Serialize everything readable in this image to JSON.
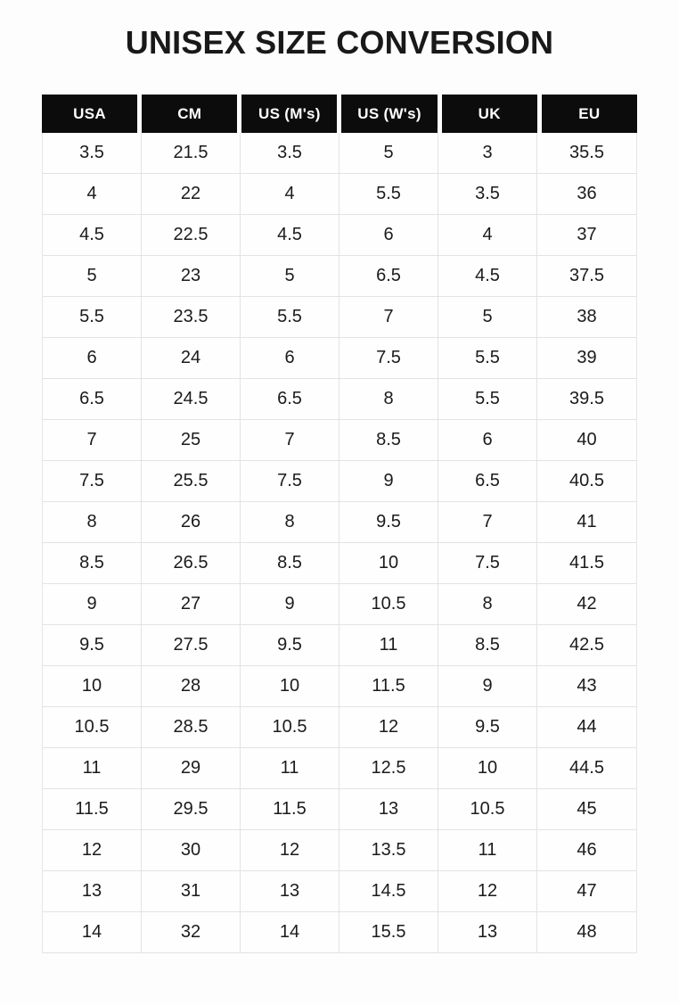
{
  "page": {
    "title": "UNISEX SIZE CONVERSION"
  },
  "table": {
    "columns": [
      "USA",
      "CM",
      "US (M's)",
      "US (W's)",
      "UK",
      "EU"
    ],
    "rows": [
      [
        "3.5",
        "21.5",
        "3.5",
        "5",
        "3",
        "35.5"
      ],
      [
        "4",
        "22",
        "4",
        "5.5",
        "3.5",
        "36"
      ],
      [
        "4.5",
        "22.5",
        "4.5",
        "6",
        "4",
        "37"
      ],
      [
        "5",
        "23",
        "5",
        "6.5",
        "4.5",
        "37.5"
      ],
      [
        "5.5",
        "23.5",
        "5.5",
        "7",
        "5",
        "38"
      ],
      [
        "6",
        "24",
        "6",
        "7.5",
        "5.5",
        "39"
      ],
      [
        "6.5",
        "24.5",
        "6.5",
        "8",
        "5.5",
        "39.5"
      ],
      [
        "7",
        "25",
        "7",
        "8.5",
        "6",
        "40"
      ],
      [
        "7.5",
        "25.5",
        "7.5",
        "9",
        "6.5",
        "40.5"
      ],
      [
        "8",
        "26",
        "8",
        "9.5",
        "7",
        "41"
      ],
      [
        "8.5",
        "26.5",
        "8.5",
        "10",
        "7.5",
        "41.5"
      ],
      [
        "9",
        "27",
        "9",
        "10.5",
        "8",
        "42"
      ],
      [
        "9.5",
        "27.5",
        "9.5",
        "11",
        "8.5",
        "42.5"
      ],
      [
        "10",
        "28",
        "10",
        "11.5",
        "9",
        "43"
      ],
      [
        "10.5",
        "28.5",
        "10.5",
        "12",
        "9.5",
        "44"
      ],
      [
        "11",
        "29",
        "11",
        "12.5",
        "10",
        "44.5"
      ],
      [
        "11.5",
        "29.5",
        "11.5",
        "13",
        "10.5",
        "45"
      ],
      [
        "12",
        "30",
        "12",
        "13.5",
        "11",
        "46"
      ],
      [
        "13",
        "31",
        "13",
        "14.5",
        "12",
        "47"
      ],
      [
        "14",
        "32",
        "14",
        "15.5",
        "13",
        "48"
      ]
    ]
  },
  "chart_data": {
    "type": "table",
    "title": "UNISEX SIZE CONVERSION",
    "columns": [
      "USA",
      "CM",
      "US (M's)",
      "US (W's)",
      "UK",
      "EU"
    ],
    "rows": [
      [
        "3.5",
        "21.5",
        "3.5",
        "5",
        "3",
        "35.5"
      ],
      [
        "4",
        "22",
        "4",
        "5.5",
        "3.5",
        "36"
      ],
      [
        "4.5",
        "22.5",
        "4.5",
        "6",
        "4",
        "37"
      ],
      [
        "5",
        "23",
        "5",
        "6.5",
        "4.5",
        "37.5"
      ],
      [
        "5.5",
        "23.5",
        "5.5",
        "7",
        "5",
        "38"
      ],
      [
        "6",
        "24",
        "6",
        "7.5",
        "5.5",
        "39"
      ],
      [
        "6.5",
        "24.5",
        "6.5",
        "8",
        "5.5",
        "39.5"
      ],
      [
        "7",
        "25",
        "7",
        "8.5",
        "6",
        "40"
      ],
      [
        "7.5",
        "25.5",
        "7.5",
        "9",
        "6.5",
        "40.5"
      ],
      [
        "8",
        "26",
        "8",
        "9.5",
        "7",
        "41"
      ],
      [
        "8.5",
        "26.5",
        "8.5",
        "10",
        "7.5",
        "41.5"
      ],
      [
        "9",
        "27",
        "9",
        "10.5",
        "8",
        "42"
      ],
      [
        "9.5",
        "27.5",
        "9.5",
        "11",
        "8.5",
        "42.5"
      ],
      [
        "10",
        "28",
        "10",
        "11.5",
        "9",
        "43"
      ],
      [
        "10.5",
        "28.5",
        "10.5",
        "12",
        "9.5",
        "44"
      ],
      [
        "11",
        "29",
        "11",
        "12.5",
        "10",
        "44.5"
      ],
      [
        "11.5",
        "29.5",
        "11.5",
        "13",
        "10.5",
        "45"
      ],
      [
        "12",
        "30",
        "12",
        "13.5",
        "11",
        "46"
      ],
      [
        "13",
        "31",
        "13",
        "14.5",
        "12",
        "47"
      ],
      [
        "14",
        "32",
        "14",
        "15.5",
        "13",
        "48"
      ]
    ]
  },
  "colors": {
    "header_bg": "#0c0c0c",
    "header_text": "#ffffff",
    "body_text": "#1b1b1b",
    "gridline": "#e3e3e3",
    "background": "#fdfdfd"
  }
}
